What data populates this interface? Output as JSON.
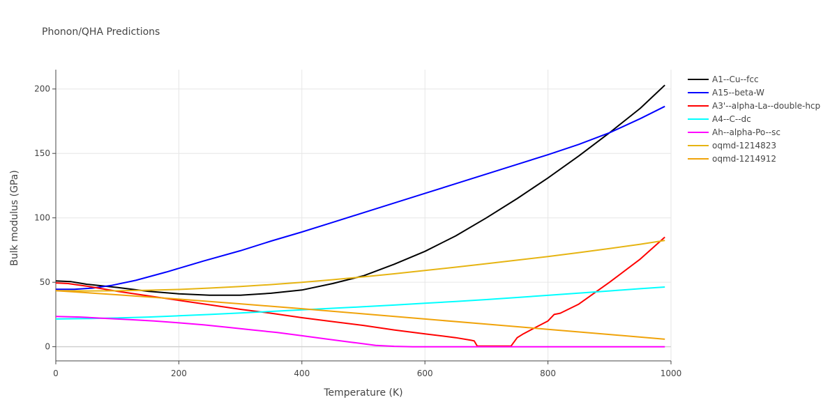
{
  "chart_data": {
    "type": "line",
    "title": "Phonon/QHA Predictions",
    "xlabel": "Temperature (K)",
    "ylabel": "Bulk modulus (GPa)",
    "xlim": [
      0,
      1000
    ],
    "ylim": [
      -11,
      215
    ],
    "xticks": [
      0,
      200,
      400,
      600,
      800,
      1000
    ],
    "yticks": [
      0,
      50,
      100,
      150,
      200
    ],
    "grid": true,
    "legend_position": "right",
    "series": [
      {
        "name": "A1--Cu--fcc",
        "color": "#000000",
        "x": [
          0,
          25,
          50,
          100,
          150,
          200,
          250,
          300,
          350,
          400,
          450,
          500,
          550,
          600,
          650,
          700,
          750,
          800,
          850,
          900,
          950,
          990
        ],
        "y": [
          51,
          50.5,
          48.5,
          46,
          43,
          41,
          40,
          40,
          41.5,
          44,
          49,
          55,
          64,
          74,
          86,
          100,
          115,
          131,
          148,
          166,
          185,
          203
        ]
      },
      {
        "name": "A15--beta-W",
        "color": "#0000ff",
        "x": [
          0,
          30,
          60,
          90,
          130,
          180,
          240,
          300,
          350,
          400,
          450,
          500,
          550,
          600,
          650,
          700,
          750,
          800,
          850,
          900,
          950,
          990
        ],
        "y": [
          44.5,
          44.6,
          45.5,
          47.5,
          51.5,
          58,
          66.5,
          74.5,
          82,
          89,
          96.5,
          104,
          111.5,
          119,
          126.5,
          134,
          141.5,
          149,
          157,
          166,
          177,
          186.5
        ]
      },
      {
        "name": "A3'--alpha-La--double-hcp",
        "color": "#ff0000",
        "x": [
          0,
          20,
          50,
          100,
          150,
          200,
          250,
          300,
          350,
          400,
          450,
          500,
          550,
          600,
          650,
          675,
          680,
          685,
          700,
          720,
          740,
          750,
          760,
          780,
          800,
          810,
          820,
          850,
          900,
          950,
          990
        ],
        "y": [
          49.5,
          49,
          47,
          43,
          39.5,
          36,
          32.5,
          29,
          26,
          22.5,
          19.5,
          16.5,
          13,
          10,
          7,
          5,
          4.5,
          0.5,
          0.5,
          0.5,
          0.5,
          7,
          10,
          15,
          20,
          25,
          26,
          33,
          50,
          68,
          85
        ]
      },
      {
        "name": "A4--C--dc",
        "color": "#00ffff",
        "x": [
          0,
          50,
          100,
          150,
          200,
          250,
          300,
          350,
          400,
          450,
          500,
          550,
          600,
          650,
          700,
          750,
          800,
          850,
          900,
          950,
          990
        ],
        "y": [
          21.5,
          21.8,
          22.3,
          23,
          24,
          25,
          26.2,
          27.4,
          28.6,
          29.8,
          31,
          32.3,
          33.7,
          35.1,
          36.6,
          38.2,
          39.9,
          41.6,
          43.3,
          45,
          46.3
        ]
      },
      {
        "name": "Ah--alpha-Po--sc",
        "color": "#ff00ff",
        "x": [
          0,
          40,
          80,
          120,
          160,
          200,
          240,
          280,
          320,
          360,
          400,
          440,
          480,
          520,
          550,
          580,
          650,
          700,
          800,
          900,
          990
        ],
        "y": [
          23.5,
          23,
          22,
          21,
          20,
          18.5,
          17,
          15,
          13,
          11,
          8.5,
          6,
          3.5,
          1,
          0.3,
          0,
          0,
          0,
          0,
          0,
          0
        ]
      },
      {
        "name": "oqmd-1214823",
        "color": "#e6b412",
        "x": [
          0,
          50,
          100,
          150,
          200,
          250,
          300,
          350,
          400,
          450,
          500,
          550,
          600,
          650,
          700,
          750,
          800,
          850,
          900,
          950,
          990
        ],
        "y": [
          43.5,
          43.3,
          43.4,
          43.8,
          44.4,
          45.5,
          46.7,
          48.2,
          50,
          52,
          54.2,
          56.6,
          59.1,
          61.7,
          64.4,
          67.2,
          70,
          73,
          76.2,
          79.5,
          82.5
        ]
      },
      {
        "name": "oqmd-1214912",
        "color": "#f0a30a",
        "x": [
          0,
          100,
          200,
          300,
          400,
          500,
          600,
          700,
          800,
          900,
          990
        ],
        "y": [
          43.5,
          40.3,
          36.9,
          33.3,
          29.5,
          25.5,
          21.5,
          17.5,
          13.5,
          9.5,
          5.8
        ]
      }
    ]
  }
}
